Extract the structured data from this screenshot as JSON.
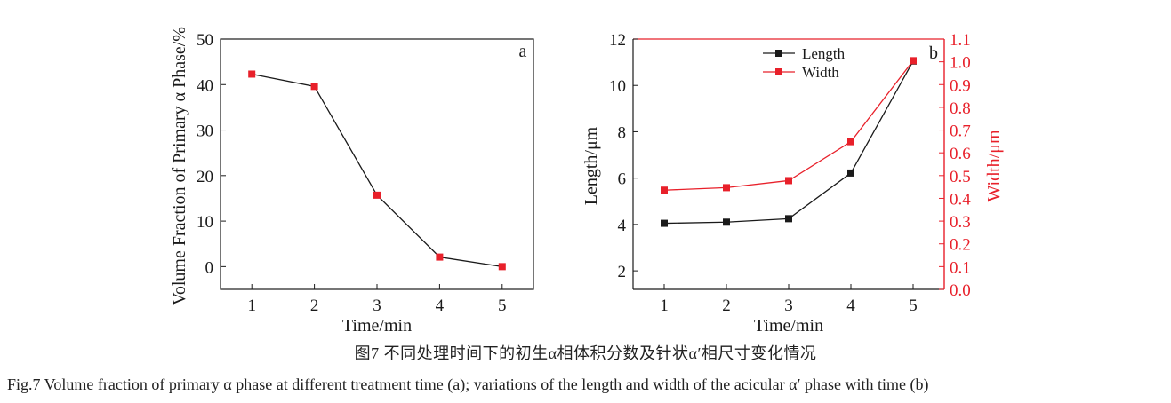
{
  "colors": {
    "black": "#1a1a1a",
    "red": "#e8202a"
  },
  "chart_data": [
    {
      "type": "line",
      "panel_label": "a",
      "xlabel": "Time/min",
      "ylabel": "Volume Fraction of Primary α Phase/%",
      "x": [
        1,
        2,
        3,
        4,
        5
      ],
      "xlim": [
        0.5,
        5.5
      ],
      "ylim": [
        -5,
        50
      ],
      "xticks": [
        1,
        2,
        3,
        4,
        5
      ],
      "yticks": [
        0,
        10,
        20,
        30,
        40,
        50
      ],
      "series": [
        {
          "values": [
            42.3,
            39.6,
            15.7,
            2.1,
            0.0
          ]
        }
      ]
    },
    {
      "type": "line",
      "panel_label": "b",
      "xlabel": "Time/min",
      "ylabel": "Length/μm",
      "y2label": "Width/μm",
      "x": [
        1,
        2,
        3,
        4,
        5
      ],
      "xlim": [
        0.5,
        5.5
      ],
      "ylim": [
        1.2,
        12
      ],
      "y2lim": [
        0,
        1.1
      ],
      "xticks": [
        1,
        2,
        3,
        4,
        5
      ],
      "yticks": [
        2,
        4,
        6,
        8,
        10,
        12
      ],
      "y2ticks": [
        "0.0",
        "0.1",
        "0.2",
        "0.3",
        "0.4",
        "0.5",
        "0.6",
        "0.7",
        "0.8",
        "0.9",
        "1.0",
        "1.1"
      ],
      "legend_position": "top-center",
      "series": [
        {
          "name": "Length",
          "axis": "left",
          "values": [
            4.05,
            4.1,
            4.25,
            6.22,
            11.05
          ]
        },
        {
          "name": "Width",
          "axis": "right",
          "values": [
            0.436,
            0.447,
            0.478,
            0.649,
            1.005
          ]
        }
      ]
    }
  ],
  "caption_cn": "图7  不同处理时间下的初生α相体积分数及针状α′相尺寸变化情况",
  "caption_en": "Fig.7  Volume fraction of primary α phase at different treatment time (a); variations of the length and width of the acicular α′ phase with time (b)"
}
